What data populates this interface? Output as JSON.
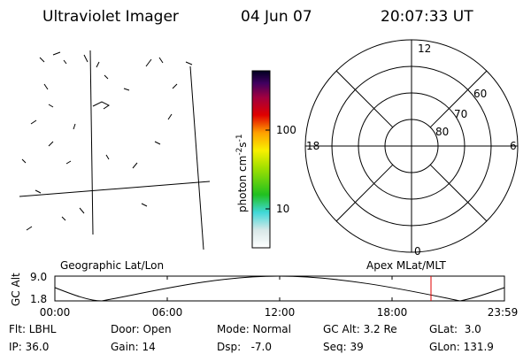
{
  "header": {
    "title": "Ultraviolet Imager",
    "date": "04 Jun 07",
    "time": "20:07:33 UT"
  },
  "colorbar": {
    "unit": {
      "base": "photon cm",
      "exp1": "-2",
      "mid": "s",
      "exp2": "-1"
    },
    "ticks": [
      "100",
      "10"
    ]
  },
  "polar": {
    "mlt": [
      "12",
      "18",
      "6",
      "0"
    ],
    "mlat": [
      "60",
      "70",
      "80"
    ]
  },
  "altitude_plot": {
    "y_label": "GC Alt",
    "y_ticks": [
      "9.0",
      "1.8"
    ],
    "left_label": "Geographic Lat/Lon",
    "right_label": "Apex MLat/MLT",
    "x_ticks": [
      "00:00",
      "06:00",
      "12:00",
      "18:00",
      "23:59"
    ]
  },
  "footer": {
    "rows": [
      [
        "Flt: LBHL",
        "Door: Open",
        "Mode: Normal",
        "GC Alt: 3.2 Re",
        "GLat:  3.0"
      ],
      [
        "IP: 36.0",
        "Gain: 14",
        "Dsp:   -7.0",
        "Seq: 39",
        "GLon: 131.9"
      ]
    ]
  }
}
